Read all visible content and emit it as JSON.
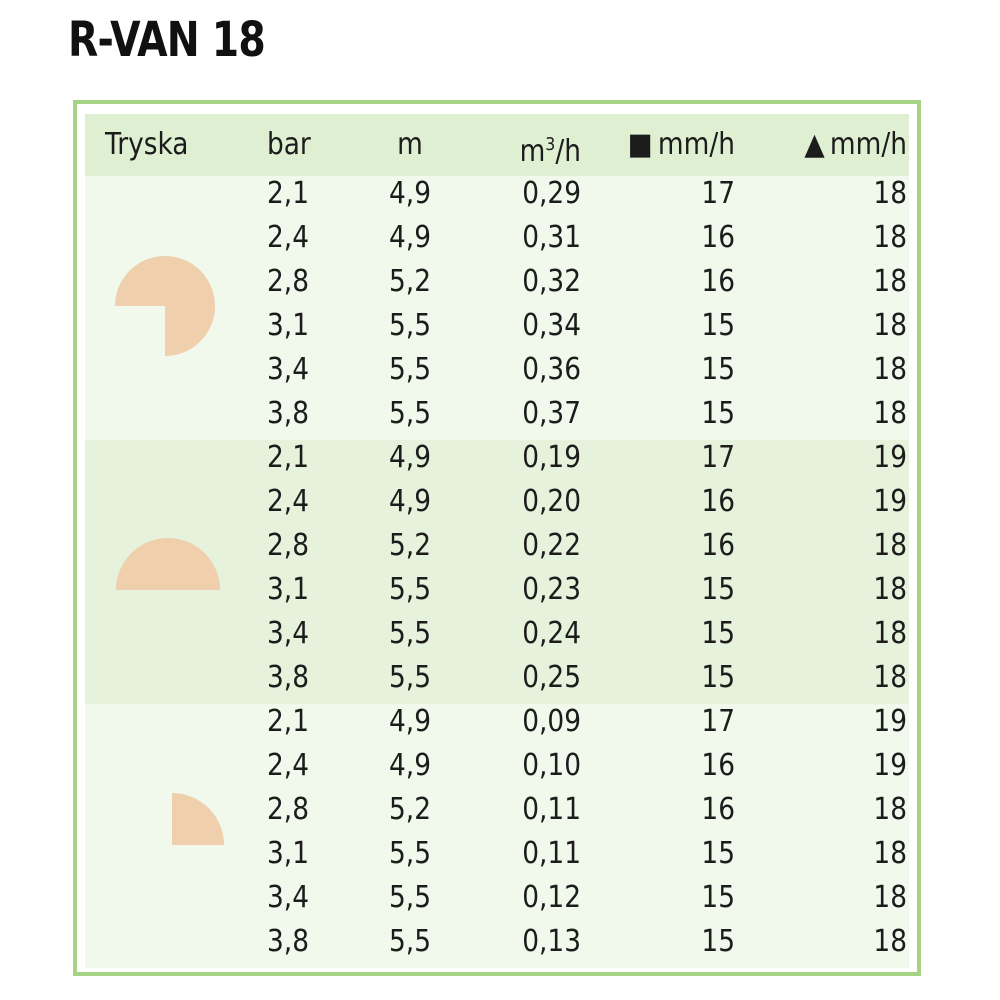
{
  "title": "R-VAN 18",
  "header": {
    "nozzle": "Tryska",
    "bar": "bar",
    "m": "m",
    "m3h_base": "m",
    "m3h_sup": "3",
    "m3h_tail": "/h",
    "square_symbol": "■",
    "square_unit": "mm/h",
    "triangle_symbol": "▲",
    "triangle_unit": "mm/h"
  },
  "colors": {
    "border": "#a6d484",
    "header_bg": "#dff0d2",
    "group_light": "#f1f8ec",
    "group_mid": "#e6f2dc",
    "nozzle_fill": "#efcfac"
  },
  "groups": [
    {
      "nozzle_icon": "three-quarter-circle-icon",
      "rows": [
        [
          "2,1",
          "4,9",
          "0,29",
          "17",
          "18"
        ],
        [
          "2,4",
          "4,9",
          "0,31",
          "16",
          "18"
        ],
        [
          "2,8",
          "5,2",
          "0,32",
          "16",
          "18"
        ],
        [
          "3,1",
          "5,5",
          "0,34",
          "15",
          "18"
        ],
        [
          "3,4",
          "5,5",
          "0,36",
          "15",
          "18"
        ],
        [
          "3,8",
          "5,5",
          "0,37",
          "15",
          "18"
        ]
      ]
    },
    {
      "nozzle_icon": "half-circle-icon",
      "rows": [
        [
          "2,1",
          "4,9",
          "0,19",
          "17",
          "19"
        ],
        [
          "2,4",
          "4,9",
          "0,20",
          "16",
          "19"
        ],
        [
          "2,8",
          "5,2",
          "0,22",
          "16",
          "18"
        ],
        [
          "3,1",
          "5,5",
          "0,23",
          "15",
          "18"
        ],
        [
          "3,4",
          "5,5",
          "0,24",
          "15",
          "18"
        ],
        [
          "3,8",
          "5,5",
          "0,25",
          "15",
          "18"
        ]
      ]
    },
    {
      "nozzle_icon": "quarter-circle-icon",
      "rows": [
        [
          "2,1",
          "4,9",
          "0,09",
          "17",
          "19"
        ],
        [
          "2,4",
          "4,9",
          "0,10",
          "16",
          "19"
        ],
        [
          "2,8",
          "5,2",
          "0,11",
          "16",
          "18"
        ],
        [
          "3,1",
          "5,5",
          "0,11",
          "15",
          "18"
        ],
        [
          "3,4",
          "5,5",
          "0,12",
          "15",
          "18"
        ],
        [
          "3,8",
          "5,5",
          "0,13",
          "15",
          "18"
        ]
      ]
    }
  ]
}
